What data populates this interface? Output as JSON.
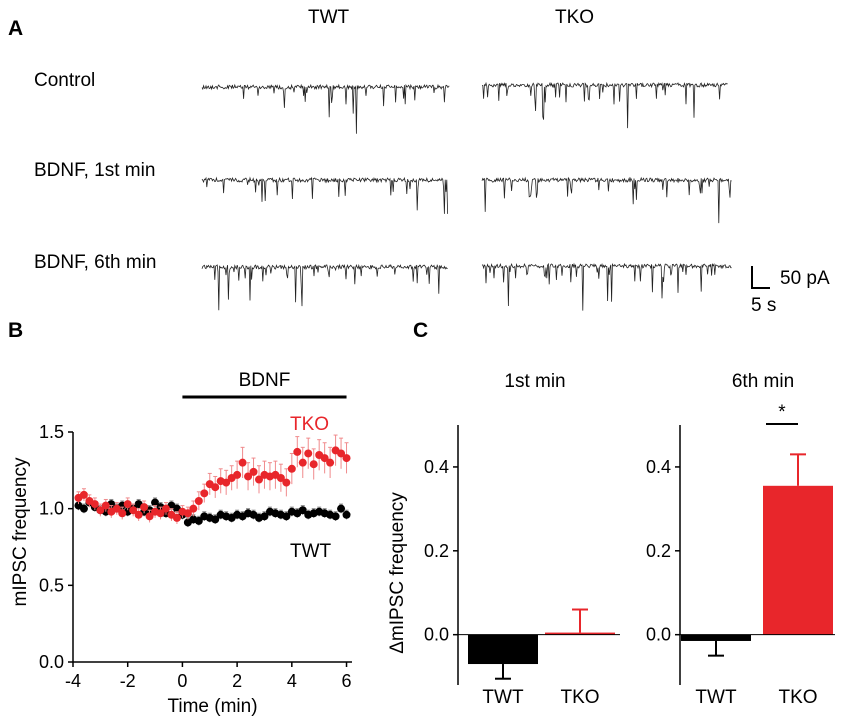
{
  "panel_a": {
    "letter": "A",
    "columns": [
      "TWT",
      "TKO"
    ],
    "rows": [
      "Control",
      "BDNF, 1st min",
      "BDNF, 6th min"
    ],
    "scale_bar": {
      "amplitude": "50 pA",
      "time": "5 s"
    }
  },
  "panel_b": {
    "letter": "B"
  },
  "panel_c": {
    "letter": "C"
  },
  "colors": {
    "twt": "#000000",
    "tko": "#e8262b"
  },
  "chart_data": [
    {
      "type": "scatter",
      "title": "",
      "xlabel": "Time (min)",
      "ylabel": "mIPSC frequency",
      "xlim": [
        -4,
        6.2
      ],
      "ylim": [
        0,
        1.5
      ],
      "xticks": [
        "-4",
        "-2",
        "0",
        "2",
        "4",
        "6"
      ],
      "yticks": [
        "0.0",
        "0.5",
        "1.0",
        "1.5"
      ],
      "annotation": "BDNF",
      "annotation_range": [
        0,
        6
      ],
      "series": [
        {
          "name": "TWT",
          "color": "#000000",
          "x": [
            -3.8,
            -3.6,
            -3.4,
            -3.2,
            -3.0,
            -2.8,
            -2.6,
            -2.4,
            -2.2,
            -2.0,
            -1.8,
            -1.6,
            -1.4,
            -1.2,
            -1.0,
            -0.8,
            -0.6,
            -0.4,
            -0.2,
            0.0,
            0.2,
            0.4,
            0.6,
            0.8,
            1.0,
            1.2,
            1.4,
            1.6,
            1.8,
            2.0,
            2.2,
            2.4,
            2.6,
            2.8,
            3.0,
            3.2,
            3.4,
            3.6,
            3.8,
            4.0,
            4.2,
            4.4,
            4.6,
            4.8,
            5.0,
            5.2,
            5.4,
            5.6,
            5.8,
            6.0
          ],
          "y": [
            1.02,
            1.0,
            1.04,
            1.01,
            0.99,
            0.98,
            1.03,
            1.0,
            1.02,
            0.98,
            1.0,
            1.03,
            0.98,
            0.99,
            1.04,
            1.01,
            0.97,
            1.02,
            1.0,
            0.96,
            0.91,
            0.93,
            0.92,
            0.95,
            0.94,
            0.93,
            0.96,
            0.95,
            0.94,
            0.96,
            0.95,
            0.97,
            0.96,
            0.94,
            0.95,
            0.98,
            0.97,
            0.96,
            0.95,
            0.98,
            0.97,
            0.99,
            0.96,
            0.97,
            0.98,
            0.97,
            0.96,
            0.95,
            1.0,
            0.96
          ],
          "err": [
            0.03,
            0.03,
            0.03,
            0.03,
            0.03,
            0.03,
            0.03,
            0.03,
            0.03,
            0.03,
            0.03,
            0.03,
            0.03,
            0.03,
            0.03,
            0.03,
            0.03,
            0.03,
            0.03,
            0.03,
            0.03,
            0.03,
            0.03,
            0.03,
            0.03,
            0.03,
            0.03,
            0.03,
            0.03,
            0.03,
            0.03,
            0.03,
            0.03,
            0.03,
            0.03,
            0.03,
            0.03,
            0.03,
            0.03,
            0.03,
            0.03,
            0.03,
            0.03,
            0.03,
            0.03,
            0.03,
            0.03,
            0.03,
            0.03,
            0.03
          ]
        },
        {
          "name": "TKO",
          "color": "#e8262b",
          "x": [
            -3.8,
            -3.6,
            -3.4,
            -3.2,
            -3.0,
            -2.8,
            -2.6,
            -2.4,
            -2.2,
            -2.0,
            -1.8,
            -1.6,
            -1.4,
            -1.2,
            -1.0,
            -0.8,
            -0.6,
            -0.4,
            -0.2,
            0.0,
            0.2,
            0.4,
            0.6,
            0.8,
            1.0,
            1.2,
            1.4,
            1.6,
            1.8,
            2.0,
            2.2,
            2.4,
            2.6,
            2.8,
            3.0,
            3.2,
            3.4,
            3.6,
            3.8,
            4.0,
            4.2,
            4.4,
            4.6,
            4.8,
            5.0,
            5.2,
            5.4,
            5.6,
            5.8,
            6.0
          ],
          "y": [
            1.07,
            1.09,
            1.05,
            1.03,
            0.99,
            1.02,
            0.98,
            1.0,
            0.97,
            1.03,
            0.99,
            0.96,
            1.01,
            0.95,
            0.98,
            0.97,
            1.0,
            0.96,
            0.94,
            0.98,
            0.97,
            1.0,
            1.05,
            1.1,
            1.16,
            1.14,
            1.18,
            1.17,
            1.2,
            1.22,
            1.3,
            1.21,
            1.24,
            1.19,
            1.22,
            1.21,
            1.22,
            1.2,
            1.17,
            1.26,
            1.37,
            1.3,
            1.36,
            1.29,
            1.35,
            1.33,
            1.3,
            1.38,
            1.36,
            1.33
          ],
          "err": [
            0.04,
            0.04,
            0.04,
            0.04,
            0.04,
            0.04,
            0.04,
            0.04,
            0.04,
            0.04,
            0.04,
            0.04,
            0.04,
            0.04,
            0.04,
            0.04,
            0.04,
            0.04,
            0.04,
            0.04,
            0.04,
            0.05,
            0.06,
            0.06,
            0.07,
            0.07,
            0.08,
            0.08,
            0.08,
            0.09,
            0.1,
            0.09,
            0.09,
            0.09,
            0.09,
            0.09,
            0.09,
            0.09,
            0.09,
            0.1,
            0.1,
            0.1,
            0.1,
            0.1,
            0.1,
            0.1,
            0.1,
            0.1,
            0.1,
            0.1
          ]
        }
      ],
      "legend": [
        "TKO",
        "TWT"
      ]
    },
    {
      "type": "bar",
      "title": "1st min",
      "xlabel": "",
      "ylabel": "ΔmIPSC frequency",
      "ylim": [
        -0.12,
        0.5
      ],
      "yticks": [
        "0.0",
        "0.2",
        "0.4"
      ],
      "categories": [
        "TWT",
        "TKO"
      ],
      "values": [
        -0.07,
        0.005
      ],
      "errors": [
        0.035,
        0.055
      ],
      "colors": [
        "#000000",
        "#e8262b"
      ]
    },
    {
      "type": "bar",
      "title": "6th min",
      "xlabel": "",
      "ylabel": "",
      "ylim": [
        -0.12,
        0.5
      ],
      "yticks": [
        "0.0",
        "0.2",
        "0.4"
      ],
      "categories": [
        "TWT",
        "TKO"
      ],
      "values": [
        -0.015,
        0.355
      ],
      "errors": [
        0.035,
        0.075
      ],
      "colors": [
        "#000000",
        "#e8262b"
      ],
      "significance": "*"
    }
  ]
}
